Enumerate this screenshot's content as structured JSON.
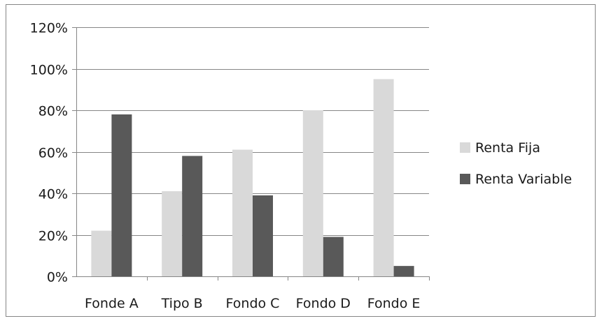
{
  "chart_data": {
    "type": "bar",
    "categories": [
      "Fonde A",
      "Tipo B",
      "Fondo C",
      "Fondo D",
      "Fondo E"
    ],
    "series": [
      {
        "name": "Renta Fija",
        "values": [
          22,
          41,
          61,
          80,
          95
        ],
        "color": "#d9d9d9"
      },
      {
        "name": "Renta Variable",
        "values": [
          78,
          58,
          39,
          19,
          5
        ],
        "color": "#595959"
      }
    ],
    "ylim": [
      0,
      120
    ],
    "yticks": [
      0,
      20,
      40,
      60,
      80,
      100,
      120
    ],
    "tick_format": "percent",
    "title": "",
    "xlabel": "",
    "ylabel": "",
    "grid": true,
    "legend_position": "right",
    "gridline_color": "#868686"
  }
}
